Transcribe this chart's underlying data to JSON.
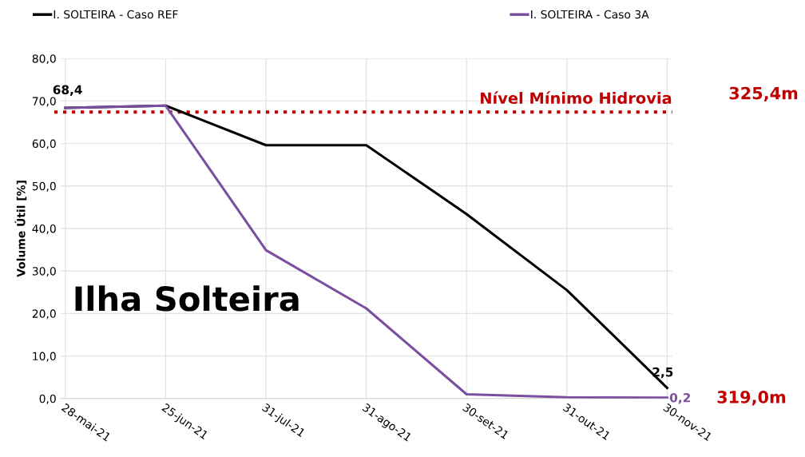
{
  "chart_data": {
    "type": "line",
    "categories": [
      "28-mai-21",
      "25-jun-21",
      "31-jul-21",
      "31-ago-21",
      "30-set-21",
      "31-out-21",
      "30-nov-21"
    ],
    "series": [
      {
        "name": "I. SOLTEIRA - Caso REF",
        "color": "#000000",
        "values": [
          68.4,
          68.9,
          59.6,
          59.6,
          43.4,
          25.5,
          2.5
        ],
        "value_labels": [
          "68,4",
          null,
          null,
          null,
          null,
          null,
          "2,5"
        ]
      },
      {
        "name": "I. SOLTEIRA - Caso 3A",
        "color": "#7b4fa0",
        "values": [
          68.4,
          68.9,
          34.9,
          21.2,
          1.0,
          0.3,
          0.2
        ],
        "value_labels": [
          null,
          null,
          null,
          null,
          null,
          null,
          "0,2"
        ]
      }
    ],
    "ylabel": "Volume Útil [%]",
    "ylim": [
      0,
      80
    ],
    "yticks": [
      {
        "value": 0,
        "label": "0,0"
      },
      {
        "value": 10,
        "label": "10,0"
      },
      {
        "value": 20,
        "label": "20,0"
      },
      {
        "value": 30,
        "label": "30,0"
      },
      {
        "value": 40,
        "label": "40,0"
      },
      {
        "value": 50,
        "label": "50,0"
      },
      {
        "value": 60,
        "label": "60,0"
      },
      {
        "value": 70,
        "label": "70,0"
      },
      {
        "value": 80,
        "label": "80,0"
      }
    ],
    "ref_lines": [
      {
        "axis": "y",
        "value": 67.4,
        "label": "Nível Mínimo Hidrovia",
        "color": "#c00000",
        "line_style": "dotted"
      }
    ],
    "annotations": [
      "325,4m",
      "319,0m",
      "Ilha Solteira"
    ],
    "grid": true,
    "legend": "top",
    "marker": "none",
    "line_style": "solid"
  }
}
